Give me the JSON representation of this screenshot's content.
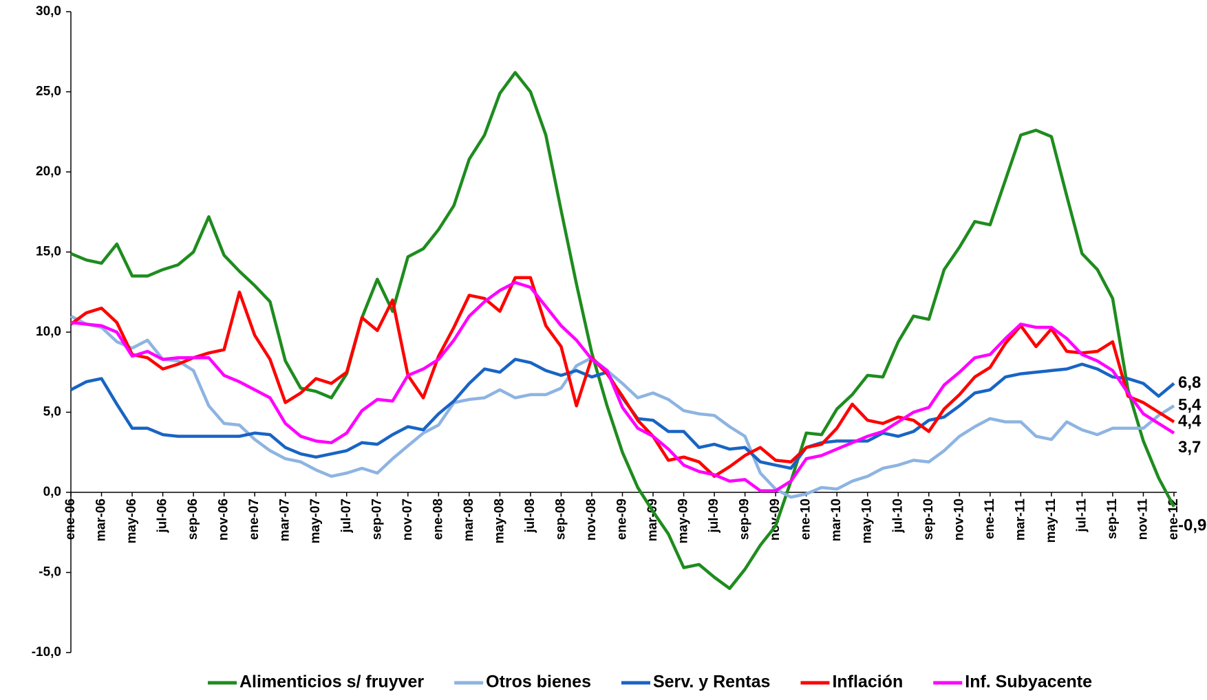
{
  "chart_data": {
    "type": "line",
    "categories": [
      "ene-06",
      null,
      "mar-06",
      null,
      "may-06",
      null,
      "jul-06",
      null,
      "sep-06",
      null,
      "nov-06",
      null,
      "ene-07",
      null,
      "mar-07",
      null,
      "may-07",
      null,
      "jul-07",
      null,
      "sep-07",
      null,
      "nov-07",
      null,
      "ene-08",
      null,
      "mar-08",
      null,
      "may-08",
      null,
      "jul-08",
      null,
      "sep-08",
      null,
      "nov-08",
      null,
      "ene-09",
      null,
      "mar-09",
      null,
      "may-09",
      null,
      "jul-09",
      null,
      "sep-09",
      null,
      "nov-09",
      null,
      "ene-10",
      null,
      "mar-10",
      null,
      "may-10",
      null,
      "jul-10",
      null,
      "sep-10",
      null,
      "nov-10",
      null,
      "ene-11",
      null,
      "mar-11",
      null,
      "may-11",
      null,
      "jul-11",
      null,
      "sep-11",
      null,
      "nov-11",
      null,
      "ene-12"
    ],
    "ylim": [
      -10,
      30
    ],
    "yticks": [
      {
        "value": -10,
        "label": "-10,0"
      },
      {
        "value": -5,
        "label": "-5,0"
      },
      {
        "value": 0,
        "label": "0,0"
      },
      {
        "value": 5,
        "label": "5,0"
      },
      {
        "value": 10,
        "label": "10,0"
      },
      {
        "value": 15,
        "label": "15,0"
      },
      {
        "value": 20,
        "label": "20,0"
      },
      {
        "value": 25,
        "label": "25,0"
      },
      {
        "value": 30,
        "label": "30,0"
      }
    ],
    "grid": false,
    "legend": "bottom",
    "series": [
      {
        "name": "Alimenticios s/ fruyver",
        "color": "#1e8c1e",
        "values": [
          14.9,
          14.5,
          14.3,
          15.5,
          13.5,
          13.5,
          13.9,
          14.2,
          15.0,
          17.2,
          14.8,
          13.8,
          12.9,
          11.9,
          8.2,
          6.5,
          6.3,
          5.9,
          7.4,
          10.9,
          13.3,
          11.3,
          14.7,
          15.2,
          16.4,
          17.9,
          20.8,
          22.3,
          24.9,
          26.2,
          25.0,
          22.3,
          17.6,
          13.0,
          8.7,
          5.4,
          2.5,
          0.3,
          -1.2,
          -2.6,
          -4.7,
          -4.5,
          -5.3,
          -6.0,
          -4.8,
          -3.3,
          -2.1,
          0.7,
          3.7,
          3.6,
          5.2,
          6.1,
          7.3,
          7.2,
          9.4,
          11.0,
          10.8,
          13.9,
          15.3,
          16.9,
          16.7,
          19.5,
          22.3,
          22.6,
          22.2,
          18.5,
          14.9,
          13.9,
          12.1,
          6.4,
          3.2,
          0.9,
          -0.9
        ],
        "value_labels": [
          null,
          null,
          null,
          null,
          null,
          null,
          null,
          null,
          null,
          null,
          null,
          null,
          null,
          null,
          null,
          null,
          null,
          null,
          null,
          null,
          null,
          null,
          null,
          null,
          null,
          null,
          null,
          null,
          null,
          null,
          null,
          null,
          null,
          null,
          null,
          null,
          null,
          null,
          null,
          null,
          null,
          null,
          null,
          null,
          null,
          null,
          null,
          null,
          null,
          null,
          null,
          null,
          null,
          null,
          null,
          null,
          null,
          null,
          null,
          null,
          null,
          null,
          null,
          null,
          null,
          null,
          null,
          null,
          null,
          null,
          null,
          null,
          "-0,9"
        ]
      },
      {
        "name": "Otros bienes",
        "color": "#8db4e2",
        "values": [
          11.0,
          10.5,
          10.3,
          9.4,
          9.0,
          9.5,
          8.3,
          8.2,
          7.6,
          5.4,
          4.3,
          4.2,
          3.3,
          2.6,
          2.1,
          1.9,
          1.4,
          1.0,
          1.2,
          1.5,
          1.2,
          2.1,
          2.9,
          3.7,
          4.2,
          5.6,
          5.8,
          5.9,
          6.4,
          5.9,
          6.1,
          6.1,
          6.5,
          7.9,
          8.4,
          7.6,
          6.8,
          5.9,
          6.2,
          5.8,
          5.1,
          4.9,
          4.8,
          4.1,
          3.5,
          1.2,
          0.2,
          -0.3,
          -0.1,
          0.3,
          0.2,
          0.7,
          1.0,
          1.5,
          1.7,
          2.0,
          1.9,
          2.6,
          3.5,
          4.1,
          4.6,
          4.4,
          4.4,
          3.5,
          3.3,
          4.4,
          3.9,
          3.6,
          4.0,
          4.0,
          4.0,
          4.8,
          5.4
        ],
        "value_labels": [
          null,
          null,
          null,
          null,
          null,
          null,
          null,
          null,
          null,
          null,
          null,
          null,
          null,
          null,
          null,
          null,
          null,
          null,
          null,
          null,
          null,
          null,
          null,
          null,
          null,
          null,
          null,
          null,
          null,
          null,
          null,
          null,
          null,
          null,
          null,
          null,
          null,
          null,
          null,
          null,
          null,
          null,
          null,
          null,
          null,
          null,
          null,
          null,
          null,
          null,
          null,
          null,
          null,
          null,
          null,
          null,
          null,
          null,
          null,
          null,
          null,
          null,
          null,
          null,
          null,
          null,
          null,
          null,
          null,
          null,
          null,
          null,
          "5,4"
        ]
      },
      {
        "name": "Serv. y Rentas",
        "color": "#1864c4",
        "values": [
          6.4,
          6.9,
          7.1,
          5.5,
          4.0,
          4.0,
          3.6,
          3.5,
          3.5,
          3.5,
          3.5,
          3.5,
          3.7,
          3.6,
          2.8,
          2.4,
          2.2,
          2.4,
          2.6,
          3.1,
          3.0,
          3.6,
          4.1,
          3.9,
          4.9,
          5.7,
          6.8,
          7.7,
          7.5,
          8.3,
          8.1,
          7.6,
          7.3,
          7.6,
          7.2,
          7.5,
          5.9,
          4.6,
          4.5,
          3.8,
          3.8,
          2.8,
          3.0,
          2.7,
          2.8,
          1.9,
          1.7,
          1.5,
          2.8,
          3.1,
          3.2,
          3.2,
          3.2,
          3.7,
          3.5,
          3.8,
          4.5,
          4.7,
          5.4,
          6.2,
          6.4,
          7.2,
          7.4,
          7.5,
          7.6,
          7.7,
          8.0,
          7.7,
          7.2,
          7.1,
          6.8,
          6.0,
          6.8
        ],
        "value_labels": [
          null,
          null,
          null,
          null,
          null,
          null,
          null,
          null,
          null,
          null,
          null,
          null,
          null,
          null,
          null,
          null,
          null,
          null,
          null,
          null,
          null,
          null,
          null,
          null,
          null,
          null,
          null,
          null,
          null,
          null,
          null,
          null,
          null,
          null,
          null,
          null,
          null,
          null,
          null,
          null,
          null,
          null,
          null,
          null,
          null,
          null,
          null,
          null,
          null,
          null,
          null,
          null,
          null,
          null,
          null,
          null,
          null,
          null,
          null,
          null,
          null,
          null,
          null,
          null,
          null,
          null,
          null,
          null,
          null,
          null,
          null,
          null,
          "6,8"
        ]
      },
      {
        "name": "Inflación",
        "color": "#ff0000",
        "values": [
          10.5,
          11.2,
          11.5,
          10.6,
          8.6,
          8.4,
          7.7,
          8.0,
          8.4,
          8.7,
          8.9,
          12.5,
          9.8,
          8.3,
          5.6,
          6.2,
          7.1,
          6.8,
          7.5,
          10.9,
          10.1,
          12.0,
          7.3,
          5.9,
          8.5,
          10.3,
          12.3,
          12.1,
          11.3,
          13.4,
          13.4,
          10.4,
          9.1,
          5.4,
          8.4,
          7.4,
          6.0,
          4.5,
          3.5,
          2.0,
          2.2,
          1.9,
          1.0,
          1.6,
          2.3,
          2.8,
          2.0,
          1.9,
          2.8,
          3.0,
          4.0,
          5.5,
          4.5,
          4.3,
          4.7,
          4.5,
          3.8,
          5.2,
          6.1,
          7.2,
          7.8,
          9.3,
          10.4,
          9.1,
          10.2,
          8.8,
          8.7,
          8.8,
          9.4,
          6.0,
          5.6,
          5.0,
          4.4
        ],
        "value_labels": [
          null,
          null,
          null,
          null,
          null,
          null,
          null,
          null,
          null,
          null,
          null,
          null,
          null,
          null,
          null,
          null,
          null,
          null,
          null,
          null,
          null,
          null,
          null,
          null,
          null,
          null,
          null,
          null,
          null,
          null,
          null,
          null,
          null,
          null,
          null,
          null,
          null,
          null,
          null,
          null,
          null,
          null,
          null,
          null,
          null,
          null,
          null,
          null,
          null,
          null,
          null,
          null,
          null,
          null,
          null,
          null,
          null,
          null,
          null,
          null,
          null,
          null,
          null,
          null,
          null,
          null,
          null,
          null,
          null,
          null,
          null,
          null,
          "4,4"
        ]
      },
      {
        "name": "Inf. Subyacente",
        "color": "#ff00ff",
        "values": [
          10.6,
          10.5,
          10.4,
          10.0,
          8.5,
          8.8,
          8.3,
          8.4,
          8.4,
          8.4,
          7.3,
          6.9,
          6.4,
          5.9,
          4.3,
          3.5,
          3.2,
          3.1,
          3.7,
          5.1,
          5.8,
          5.7,
          7.3,
          7.7,
          8.3,
          9.5,
          11.0,
          11.9,
          12.6,
          13.1,
          12.8,
          11.6,
          10.4,
          9.5,
          8.3,
          7.6,
          5.3,
          4.0,
          3.5,
          2.7,
          1.7,
          1.3,
          1.1,
          0.7,
          0.8,
          0.1,
          0.1,
          0.7,
          2.1,
          2.3,
          2.7,
          3.1,
          3.5,
          3.8,
          4.4,
          5.0,
          5.3,
          6.7,
          7.5,
          8.4,
          8.6,
          9.6,
          10.5,
          10.3,
          10.3,
          9.6,
          8.6,
          8.2,
          7.6,
          6.2,
          4.9,
          4.3,
          3.7
        ],
        "value_labels": [
          null,
          null,
          null,
          null,
          null,
          null,
          null,
          null,
          null,
          null,
          null,
          null,
          null,
          null,
          null,
          null,
          null,
          null,
          null,
          null,
          null,
          null,
          null,
          null,
          null,
          null,
          null,
          null,
          null,
          null,
          null,
          null,
          null,
          null,
          null,
          null,
          null,
          null,
          null,
          null,
          null,
          null,
          null,
          null,
          null,
          null,
          null,
          null,
          null,
          null,
          null,
          null,
          null,
          null,
          null,
          null,
          null,
          null,
          null,
          null,
          null,
          null,
          null,
          null,
          null,
          null,
          null,
          null,
          null,
          null,
          null,
          null,
          "3,7"
        ]
      }
    ]
  }
}
